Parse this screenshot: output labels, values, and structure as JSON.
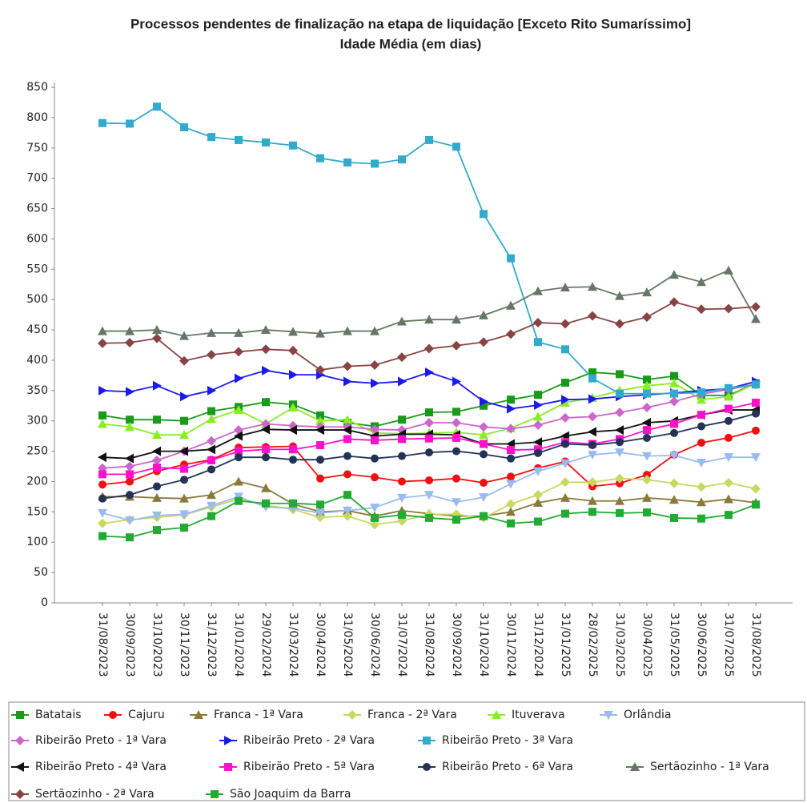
{
  "chart_data": {
    "type": "line",
    "title": "Processos pendentes de finalização na etapa de liquidação [Exceto Rito Sumaríssimo]",
    "subtitle": "Idade Média (em dias)",
    "categories": [
      "31/08/2023",
      "30/09/2023",
      "31/10/2023",
      "30/11/2023",
      "31/12/2023",
      "31/01/2024",
      "29/02/2024",
      "31/03/2024",
      "30/04/2024",
      "31/05/2024",
      "30/06/2024",
      "31/07/2024",
      "31/08/2024",
      "30/09/2024",
      "31/10/2024",
      "30/11/2024",
      "31/12/2024",
      "31/01/2025",
      "28/02/2025",
      "31/03/2025",
      "30/04/2025",
      "31/05/2025",
      "30/06/2025",
      "31/07/2025",
      "31/08/2025"
    ],
    "ylim": [
      0,
      850
    ],
    "yticks": [
      0,
      50,
      100,
      150,
      200,
      250,
      300,
      350,
      400,
      450,
      500,
      550,
      600,
      650,
      700,
      750,
      800,
      850
    ],
    "grid": false,
    "series": [
      {
        "name": "Batatais",
        "color": "#1a9a1a",
        "marker": "square",
        "values": [
          309,
          302,
          302,
          300,
          316,
          323,
          331,
          327,
          309,
          297,
          291,
          302,
          314,
          315,
          325,
          335,
          343,
          363,
          380,
          377,
          368,
          374,
          342,
          342,
          362
        ]
      },
      {
        "name": "Cajuru",
        "color": "#ee1111",
        "marker": "circle",
        "values": [
          195,
          200,
          217,
          228,
          236,
          256,
          257,
          258,
          205,
          212,
          207,
          200,
          202,
          205,
          198,
          208,
          222,
          233,
          192,
          197,
          211,
          244,
          264,
          272,
          284
        ]
      },
      {
        "name": "Franca - 1ª Vara",
        "color": "#8a7a3a",
        "marker": "triangle-up",
        "values": [
          175,
          175,
          173,
          172,
          178,
          200,
          189,
          163,
          150,
          152,
          143,
          152,
          147,
          143,
          143,
          150,
          165,
          173,
          168,
          168,
          173,
          170,
          166,
          171,
          165
        ]
      },
      {
        "name": "Franca - 2ª Vara",
        "color": "#c8d860",
        "marker": "diamond",
        "values": [
          131,
          137,
          141,
          145,
          158,
          171,
          161,
          154,
          141,
          143,
          129,
          135,
          146,
          146,
          140,
          163,
          178,
          199,
          199,
          205,
          203,
          197,
          191,
          198,
          188
        ]
      },
      {
        "name": "Ituverava",
        "color": "#88ee22",
        "marker": "triangle-up",
        "values": [
          295,
          290,
          277,
          277,
          303,
          318,
          295,
          322,
          300,
          302,
          280,
          279,
          280,
          281,
          277,
          288,
          307,
          330,
          338,
          350,
          358,
          362,
          335,
          340,
          362
        ]
      },
      {
        "name": "Orlândia",
        "color": "#99bbee",
        "marker": "triangle-down",
        "values": [
          148,
          136,
          144,
          146,
          160,
          175,
          158,
          156,
          148,
          152,
          157,
          173,
          178,
          166,
          174,
          196,
          217,
          230,
          244,
          248,
          242,
          243,
          231,
          240,
          240
        ]
      },
      {
        "name": "Ribeirão Preto - 1ª Vara",
        "color": "#cc66cc",
        "marker": "diamond",
        "values": [
          222,
          225,
          235,
          250,
          267,
          285,
          295,
          292,
          290,
          290,
          286,
          285,
          297,
          297,
          290,
          287,
          293,
          305,
          307,
          314,
          322,
          332,
          344,
          352,
          360
        ]
      },
      {
        "name": "Ribeirão Preto - 2ª Vara",
        "color": "#1a1aee",
        "marker": "triangle-right",
        "values": [
          350,
          348,
          358,
          340,
          350,
          370,
          383,
          376,
          376,
          365,
          362,
          365,
          380,
          365,
          332,
          320,
          326,
          335,
          336,
          340,
          343,
          346,
          350,
          353,
          365
        ]
      },
      {
        "name": "Ribeirão Preto - 3ª Vara",
        "color": "#33aacc",
        "marker": "square",
        "values": [
          791,
          790,
          818,
          784,
          768,
          763,
          759,
          754,
          733,
          726,
          724,
          731,
          763,
          752,
          641,
          568,
          430,
          418,
          370,
          345,
          345,
          345,
          347,
          354,
          360
        ]
      },
      {
        "name": "Ribeirão Preto - 4ª Vara",
        "color": "#111111",
        "marker": "triangle-left",
        "values": [
          240,
          238,
          250,
          250,
          253,
          275,
          286,
          285,
          285,
          285,
          275,
          278,
          278,
          277,
          262,
          262,
          265,
          275,
          282,
          285,
          297,
          300,
          310,
          318,
          318
        ]
      },
      {
        "name": "Ribeirão Preto - 5ª Vara",
        "color": "#ff11cc",
        "marker": "square",
        "values": [
          212,
          212,
          223,
          221,
          235,
          250,
          253,
          253,
          260,
          270,
          268,
          270,
          271,
          272,
          262,
          252,
          253,
          265,
          262,
          270,
          285,
          295,
          310,
          320,
          330
        ]
      },
      {
        "name": "Ribeirão Preto - 6ª Vara",
        "color": "#223355",
        "marker": "circle",
        "values": [
          172,
          178,
          192,
          203,
          220,
          240,
          240,
          236,
          236,
          242,
          238,
          242,
          248,
          250,
          245,
          238,
          247,
          262,
          260,
          265,
          272,
          280,
          291,
          300,
          312
        ]
      },
      {
        "name": "Sertãozinho - 1ª Vara",
        "color": "#667766",
        "marker": "triangle-up",
        "values": [
          448,
          448,
          450,
          440,
          445,
          445,
          450,
          447,
          444,
          448,
          448,
          464,
          467,
          467,
          474,
          490,
          514,
          520,
          521,
          506,
          512,
          541,
          529,
          548,
          468
        ]
      },
      {
        "name": "Sertãozinho - 2ª Vara",
        "color": "#884444",
        "marker": "diamond",
        "values": [
          428,
          429,
          436,
          399,
          409,
          414,
          418,
          416,
          384,
          390,
          392,
          405,
          419,
          424,
          430,
          443,
          462,
          460,
          473,
          460,
          471,
          496,
          484,
          485,
          488
        ]
      },
      {
        "name": "São Joaquim da Barra",
        "color": "#22aa33",
        "marker": "square",
        "values": [
          110,
          108,
          120,
          124,
          143,
          168,
          164,
          164,
          162,
          178,
          140,
          145,
          140,
          137,
          143,
          131,
          134,
          147,
          150,
          148,
          149,
          140,
          139,
          145,
          162
        ]
      }
    ]
  }
}
